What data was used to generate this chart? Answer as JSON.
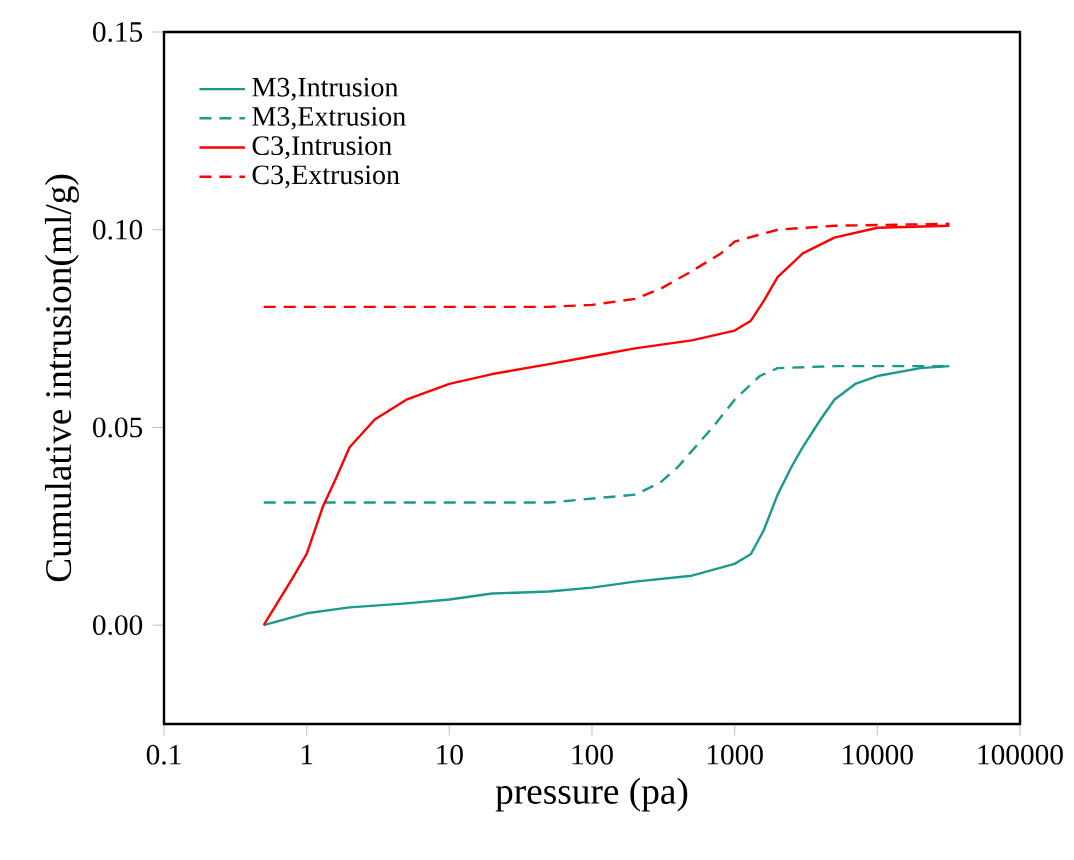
{
  "chart_data": {
    "type": "line",
    "xlabel": "pressure (pa)",
    "ylabel": "Cumulative intrusion(ml/g)",
    "log": "x",
    "legend": "top left",
    "grid": false,
    "marker": "none",
    "xlim": [
      0.1,
      100000
    ],
    "xticks": [
      0.1,
      1,
      10,
      100,
      1000,
      10000,
      100000
    ],
    "ylim": [
      -0.025,
      0.15
    ],
    "yticks": [
      {
        "value": 0,
        "label": "0.00"
      },
      {
        "value": 0.05,
        "label": "0.05"
      },
      {
        "value": 0.1,
        "label": "0.10"
      },
      {
        "value": 0.15,
        "label": "0.15"
      }
    ],
    "series": [
      {
        "name": "M3,Intrusion",
        "color": "#1a9a8f",
        "line_style": "solid",
        "x": [
          0.5,
          1,
          2,
          5,
          10,
          20,
          50,
          100,
          200,
          500,
          1000,
          1300,
          1600,
          2000,
          2500,
          3000,
          4000,
          5000,
          7000,
          10000,
          20000,
          32000
        ],
        "values": [
          0,
          0.003,
          0.0045,
          0.0055,
          0.0065,
          0.008,
          0.0085,
          0.0095,
          0.011,
          0.0125,
          0.0155,
          0.018,
          0.024,
          0.033,
          0.04,
          0.045,
          0.052,
          0.057,
          0.061,
          0.063,
          0.065,
          0.0655
        ]
      },
      {
        "name": "M3,Extrusion",
        "color": "#1a9a8f",
        "line_style": "dashed",
        "x": [
          0.5,
          10,
          50,
          100,
          200,
          300,
          400,
          500,
          700,
          1000,
          1500,
          2000,
          5000,
          32000
        ],
        "values": [
          0.031,
          0.031,
          0.031,
          0.032,
          0.033,
          0.036,
          0.04,
          0.044,
          0.05,
          0.057,
          0.063,
          0.065,
          0.0655,
          0.0655
        ]
      },
      {
        "name": "C3,Intrusion",
        "color": "#ff0000",
        "line_style": "solid",
        "x": [
          0.5,
          0.8,
          1,
          1.3,
          1.6,
          2,
          3,
          5,
          10,
          20,
          50,
          100,
          200,
          500,
          1000,
          1300,
          1600,
          2000,
          3000,
          5000,
          10000,
          32000
        ],
        "values": [
          0,
          0.012,
          0.018,
          0.03,
          0.037,
          0.045,
          0.052,
          0.057,
          0.061,
          0.0635,
          0.066,
          0.068,
          0.07,
          0.072,
          0.0745,
          0.077,
          0.082,
          0.088,
          0.094,
          0.098,
          0.1005,
          0.101
        ]
      },
      {
        "name": "C3,Extrusion",
        "color": "#ff0000",
        "line_style": "dashed",
        "x": [
          0.5,
          50,
          100,
          200,
          300,
          500,
          800,
          1000,
          2000,
          5000,
          32000
        ],
        "values": [
          0.0805,
          0.0805,
          0.081,
          0.0825,
          0.085,
          0.0895,
          0.094,
          0.097,
          0.1,
          0.101,
          0.1015
        ]
      }
    ]
  }
}
